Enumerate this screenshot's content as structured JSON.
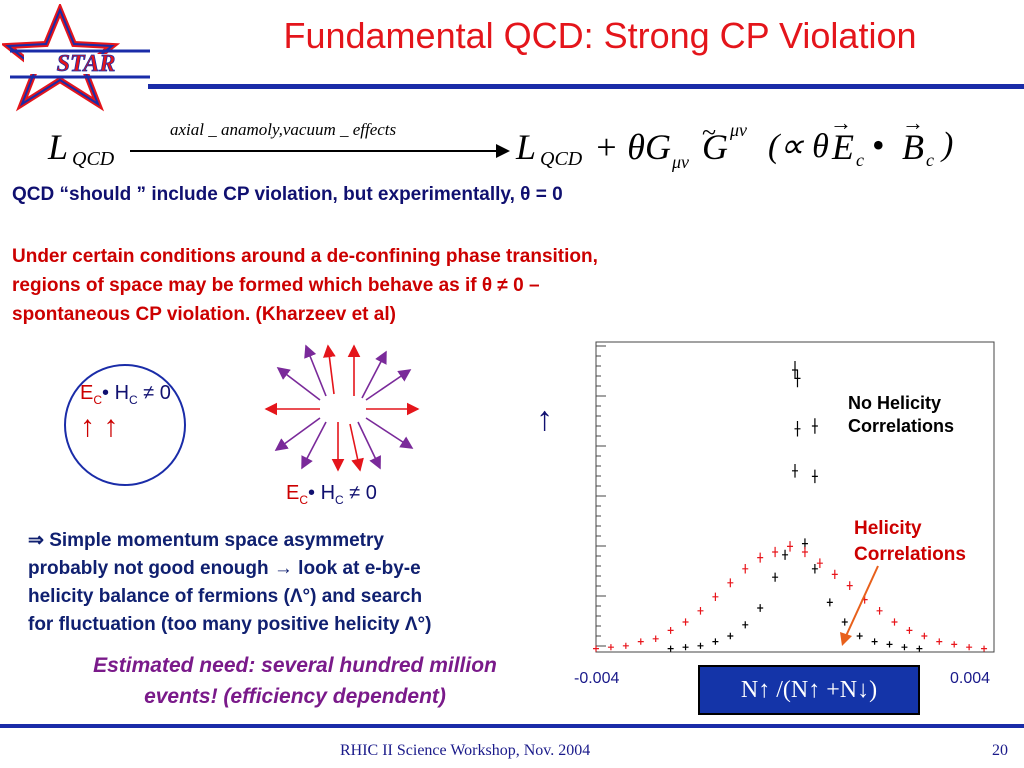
{
  "logo": {
    "text": "STAR"
  },
  "slide": {
    "title": "Fundamental QCD: Strong CP Violation",
    "equation": {
      "lhs_L": "L",
      "lhs_sub": "QCD",
      "arrow_label": "axial _ anamoly,vacuum _ effects",
      "rhs_L": "L",
      "rhs_sub": "QCD",
      "rhs_terms": "+ θG",
      "G_sub": "μν",
      "G_tilde": "G",
      "G_sup": "μν",
      "prop": "(∝ θ",
      "E": "E",
      "E_sub": "c",
      "dot": "•",
      "B": "B",
      "B_sub": "c",
      "close": ")"
    },
    "line1": "QCD “should ” include CP violation, but experimentally, θ = 0",
    "para2": [
      "Under certain conditions around a de-confining phase transition,",
      "regions of space may be formed which behave as if θ ≠ 0 –",
      "spontaneous CP violation.  (Kharzeev et al)"
    ],
    "circle_label": {
      "E": "E",
      "E_sub": "C",
      "mid": "• H",
      "H_sub": "C",
      "rel": " ≠  0",
      "arrows": "↑  ↑"
    },
    "star_label": {
      "E": "E",
      "E_sub": "C",
      "mid": "• H",
      "H_sub": "C",
      "rel": " ≠  0"
    },
    "up_arrow": "↑",
    "bullet_lines": [
      "⇒ Simple momentum space asymmetry",
      "probably not good enough → look at e-by-e",
      "helicity balance of fermions (Λ°) and search",
      "for fluctuation (too many positive helicity Λ°)"
    ],
    "estimate_lines": [
      "Estimated need: several hundred million",
      "events! (efficiency dependent)"
    ],
    "footer_left": "RHIC II Science Workshop, Nov. 2004",
    "footer_right": "20"
  },
  "chart_data": {
    "type": "scatter",
    "title": "",
    "xlabel": "N↑ /(N↑ +N↓)",
    "ylabel": "",
    "xlim": [
      -0.004,
      0.004
    ],
    "x_tick_labels": [
      "-0.004",
      "0.004"
    ],
    "series": [
      {
        "name": "No Helicity Correlations",
        "color": "#000000",
        "points": [
          [
            -0.0025,
            0.5
          ],
          [
            -0.0022,
            1
          ],
          [
            -0.0019,
            1.5
          ],
          [
            -0.0016,
            3
          ],
          [
            -0.0013,
            5
          ],
          [
            -0.001,
            9
          ],
          [
            -0.0007,
            15
          ],
          [
            -0.0004,
            26
          ],
          [
            -0.0002,
            34
          ],
          [
            0.0,
            100
          ],
          [
            5e-05,
            97
          ],
          [
            5e-05,
            79
          ],
          [
            0.0004,
            80
          ],
          [
            0.0,
            64
          ],
          [
            0.0004,
            62
          ],
          [
            0.0002,
            38
          ],
          [
            0.0004,
            29
          ],
          [
            0.0007,
            17
          ],
          [
            0.001,
            10
          ],
          [
            0.0013,
            5
          ],
          [
            0.0016,
            3
          ],
          [
            0.0019,
            2
          ],
          [
            0.0022,
            1
          ],
          [
            0.0025,
            0.5
          ]
        ]
      },
      {
        "name": "Helicity Correlations",
        "color": "#e8151b",
        "points": [
          [
            -0.004,
            0.5
          ],
          [
            -0.0037,
            1
          ],
          [
            -0.0034,
            1.5
          ],
          [
            -0.0031,
            3
          ],
          [
            -0.0028,
            4
          ],
          [
            -0.0025,
            7
          ],
          [
            -0.0022,
            10
          ],
          [
            -0.0019,
            14
          ],
          [
            -0.0016,
            19
          ],
          [
            -0.0013,
            24
          ],
          [
            -0.001,
            29
          ],
          [
            -0.0007,
            33
          ],
          [
            -0.0004,
            35
          ],
          [
            -0.0001,
            37
          ],
          [
            0.0002,
            35
          ],
          [
            0.0005,
            31
          ],
          [
            0.0008,
            27
          ],
          [
            0.0011,
            23
          ],
          [
            0.0014,
            18
          ],
          [
            0.0017,
            14
          ],
          [
            0.002,
            10
          ],
          [
            0.0023,
            7
          ],
          [
            0.0026,
            5
          ],
          [
            0.0029,
            3
          ],
          [
            0.0032,
            2
          ],
          [
            0.0035,
            1
          ],
          [
            0.0038,
            0.5
          ]
        ]
      }
    ]
  }
}
